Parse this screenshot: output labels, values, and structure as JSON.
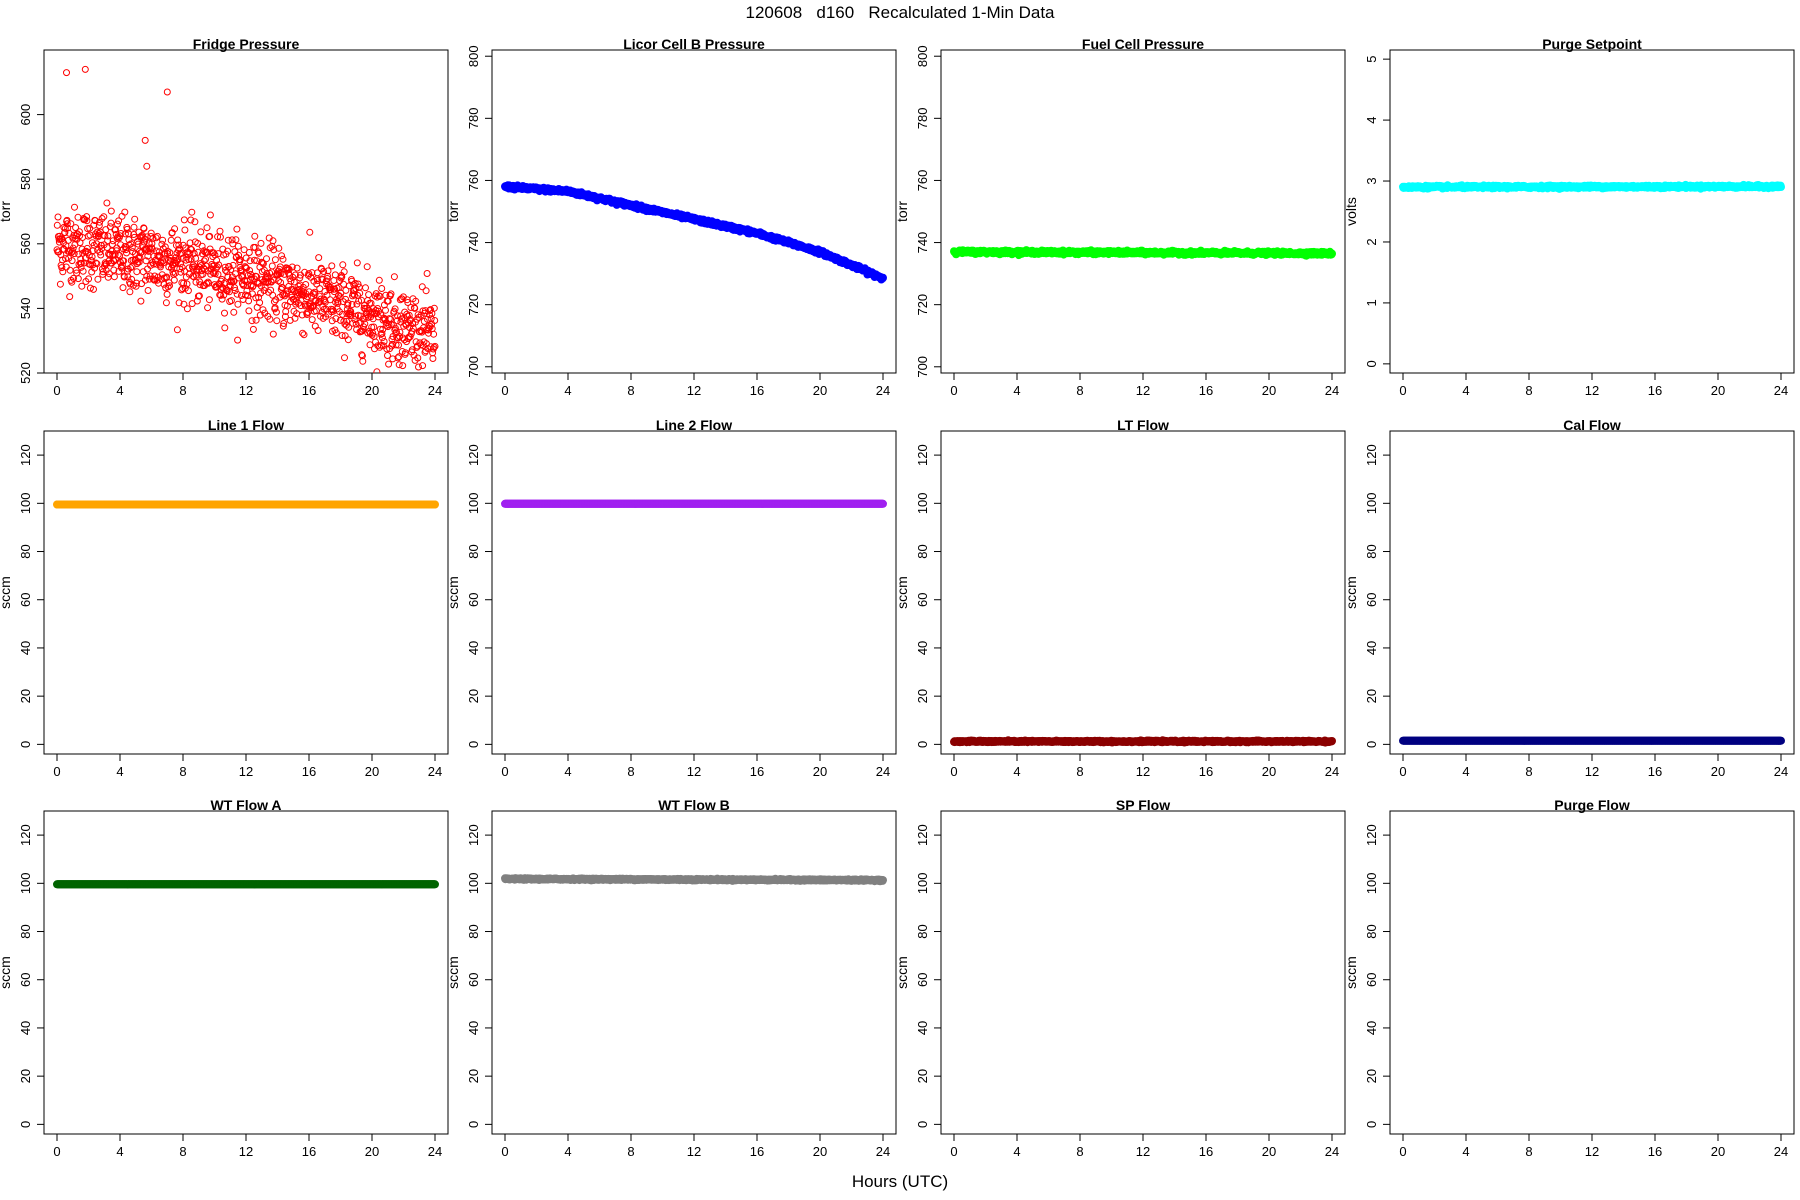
{
  "page_title": "120608   d160   Recalculated 1-Min Data",
  "x_axis_label": "Hours (UTC)",
  "x_ticks": [
    0,
    4,
    8,
    12,
    16,
    20,
    24
  ],
  "chart_data": [
    {
      "type": "scatter",
      "title": "Fridge Pressure",
      "ylabel": "torr",
      "xlim": [
        0,
        24
      ],
      "ylim": [
        520,
        620
      ],
      "yticks": [
        520,
        540,
        560,
        580,
        600
      ],
      "color": "#ff0000",
      "marker": "open-circle",
      "trend": {
        "x": [
          0,
          4,
          8,
          12,
          16,
          20,
          24
        ],
        "y": [
          560,
          557,
          554,
          550,
          544,
          538,
          531
        ]
      },
      "noise": 6,
      "outliers": [
        {
          "x": 0.6,
          "y": 613
        },
        {
          "x": 1.8,
          "y": 614
        },
        {
          "x": 5.6,
          "y": 592
        },
        {
          "x": 5.7,
          "y": 584
        },
        {
          "x": 7.0,
          "y": 607
        }
      ]
    },
    {
      "type": "scatter",
      "title": "Licor Cell B Pressure",
      "ylabel": "torr",
      "xlim": [
        0,
        24
      ],
      "ylim": [
        698,
        802
      ],
      "yticks": [
        700,
        720,
        740,
        760,
        780,
        800
      ],
      "color": "#0000ff",
      "marker": "filled-circle",
      "trend": {
        "x": [
          0,
          4,
          8,
          12,
          16,
          20,
          24
        ],
        "y": [
          758,
          756.5,
          752,
          747.5,
          743,
          737,
          728.5
        ]
      },
      "noise": 0.6
    },
    {
      "type": "scatter",
      "title": "Fuel Cell Pressure",
      "ylabel": "torr",
      "xlim": [
        0,
        24
      ],
      "ylim": [
        698,
        802
      ],
      "yticks": [
        700,
        720,
        740,
        760,
        780,
        800
      ],
      "color": "#00ff00",
      "marker": "filled-circle",
      "trend": {
        "x": [
          0,
          24
        ],
        "y": [
          737,
          736.5
        ]
      },
      "noise": 0.5
    },
    {
      "type": "scatter",
      "title": "Purge Setpoint",
      "ylabel": "volts",
      "xlim": [
        0,
        24
      ],
      "ylim": [
        -0.15,
        5.15
      ],
      "yticks": [
        0,
        1,
        2,
        3,
        4,
        5
      ],
      "color": "#00ffff",
      "marker": "filled-circle",
      "trend": {
        "x": [
          0,
          24
        ],
        "y": [
          2.9,
          2.91
        ]
      },
      "noise": 0.02
    },
    {
      "type": "scatter",
      "title": "Line 1 Flow",
      "ylabel": "sccm",
      "xlim": [
        0,
        24
      ],
      "ylim": [
        -4,
        130
      ],
      "yticks": [
        0,
        20,
        40,
        60,
        80,
        100,
        120
      ],
      "color": "#ffa500",
      "marker": "filled-circle",
      "trend": {
        "x": [
          0,
          24
        ],
        "y": [
          99.5,
          99.5
        ]
      },
      "noise": 0
    },
    {
      "type": "scatter",
      "title": "Line 2 Flow",
      "ylabel": "sccm",
      "xlim": [
        0,
        24
      ],
      "ylim": [
        -4,
        130
      ],
      "yticks": [
        0,
        20,
        40,
        60,
        80,
        100,
        120
      ],
      "color": "#a020f0",
      "marker": "filled-circle",
      "trend": {
        "x": [
          0,
          24
        ],
        "y": [
          99.8,
          99.8
        ]
      },
      "noise": 0
    },
    {
      "type": "scatter",
      "title": "LT Flow",
      "ylabel": "sccm",
      "xlim": [
        0,
        24
      ],
      "ylim": [
        -4,
        130
      ],
      "yticks": [
        0,
        20,
        40,
        60,
        80,
        100,
        120
      ],
      "color": "#8b0000",
      "marker": "filled-circle",
      "trend": {
        "x": [
          0,
          24
        ],
        "y": [
          1.2,
          1.2
        ]
      },
      "noise": 0.3
    },
    {
      "type": "scatter",
      "title": "Cal Flow",
      "ylabel": "sccm",
      "xlim": [
        0,
        24
      ],
      "ylim": [
        -4,
        130
      ],
      "yticks": [
        0,
        20,
        40,
        60,
        80,
        100,
        120
      ],
      "color": "#000080",
      "marker": "filled-circle",
      "trend": {
        "x": [
          0,
          24
        ],
        "y": [
          1.5,
          1.5
        ]
      },
      "noise": 0
    },
    {
      "type": "scatter",
      "title": "WT Flow A",
      "ylabel": "sccm",
      "xlim": [
        0,
        24
      ],
      "ylim": [
        -4,
        130
      ],
      "yticks": [
        0,
        20,
        40,
        60,
        80,
        100,
        120
      ],
      "color": "#006400",
      "marker": "filled-circle",
      "trend": {
        "x": [
          0,
          24
        ],
        "y": [
          99.6,
          99.6
        ]
      },
      "noise": 0
    },
    {
      "type": "scatter",
      "title": "WT Flow B",
      "ylabel": "sccm",
      "xlim": [
        0,
        24
      ],
      "ylim": [
        -4,
        130
      ],
      "yticks": [
        0,
        20,
        40,
        60,
        80,
        100,
        120
      ],
      "color": "#808080",
      "marker": "filled-circle",
      "trend": {
        "x": [
          0,
          24
        ],
        "y": [
          101.8,
          101.3
        ]
      },
      "noise": 0.3
    },
    {
      "type": "scatter",
      "title": "SP Flow",
      "ylabel": "sccm",
      "xlim": [
        0,
        24
      ],
      "ylim": [
        -4,
        130
      ],
      "yticks": [
        0,
        20,
        40,
        60,
        80,
        100,
        120
      ],
      "color": "#000000",
      "marker": "none"
    },
    {
      "type": "scatter",
      "title": "Purge Flow",
      "ylabel": "sccm",
      "xlim": [
        0,
        24
      ],
      "ylim": [
        -4,
        130
      ],
      "yticks": [
        0,
        20,
        40,
        60,
        80,
        100,
        120
      ],
      "color": "#000000",
      "marker": "none"
    }
  ]
}
